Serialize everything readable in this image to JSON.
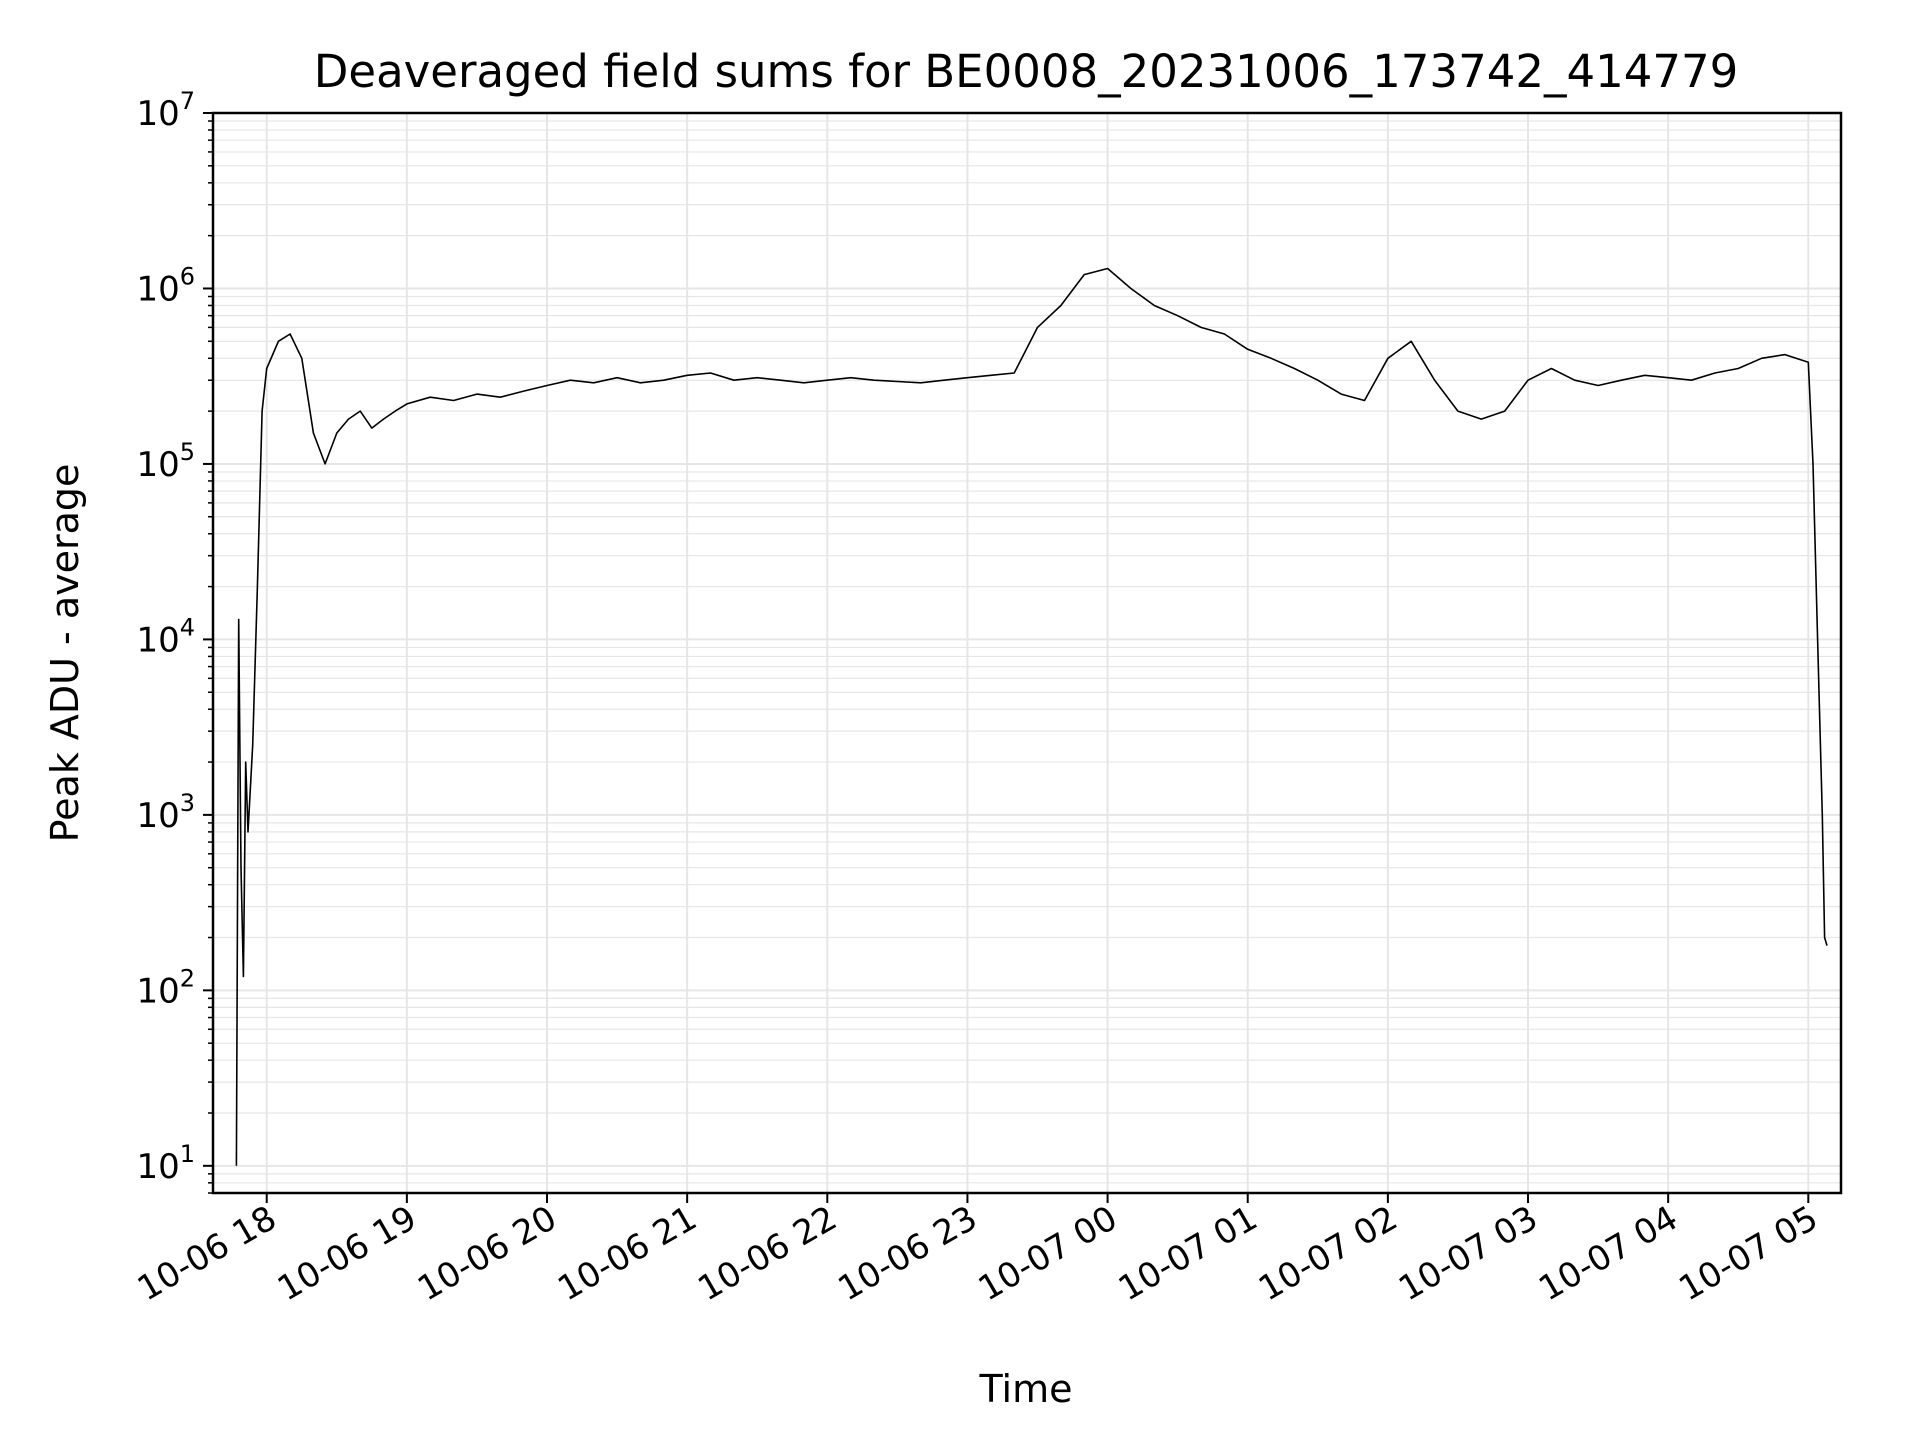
{
  "chart_data": {
    "type": "line",
    "title": "Deaveraged field sums for BE0008_20231006_173742_414779",
    "xlabel": "Time",
    "ylabel": "Peak ADU - average",
    "yscale": "log",
    "ylim": [
      7,
      10000000
    ],
    "xlim": [
      "2023-10-06 17:37",
      "2023-10-07 05:14"
    ],
    "grid": true,
    "line_color": "#000000",
    "grid_color": "#e6e6e6",
    "y_ticks": [
      {
        "value": 10,
        "base": "10",
        "exp": "1"
      },
      {
        "value": 100,
        "base": "10",
        "exp": "2"
      },
      {
        "value": 1000,
        "base": "10",
        "exp": "3"
      },
      {
        "value": 10000,
        "base": "10",
        "exp": "4"
      },
      {
        "value": 100000,
        "base": "10",
        "exp": "5"
      },
      {
        "value": 1000000,
        "base": "10",
        "exp": "6"
      },
      {
        "value": 10000000,
        "base": "10",
        "exp": "7"
      }
    ],
    "x_ticks": [
      {
        "value": "2023-10-06 18:00",
        "label": "10-06 18"
      },
      {
        "value": "2023-10-06 19:00",
        "label": "10-06 19"
      },
      {
        "value": "2023-10-06 20:00",
        "label": "10-06 20"
      },
      {
        "value": "2023-10-06 21:00",
        "label": "10-06 21"
      },
      {
        "value": "2023-10-06 22:00",
        "label": "10-06 22"
      },
      {
        "value": "2023-10-06 23:00",
        "label": "10-06 23"
      },
      {
        "value": "2023-10-07 00:00",
        "label": "10-07 00"
      },
      {
        "value": "2023-10-07 01:00",
        "label": "10-07 01"
      },
      {
        "value": "2023-10-07 02:00",
        "label": "10-07 02"
      },
      {
        "value": "2023-10-07 03:00",
        "label": "10-07 03"
      },
      {
        "value": "2023-10-07 04:00",
        "label": "10-07 04"
      },
      {
        "value": "2023-10-07 05:00",
        "label": "10-07 05"
      }
    ],
    "series": [
      {
        "x": [
          "2023-10-06 17:47",
          "2023-10-06 17:48",
          "2023-10-06 17:49",
          "2023-10-06 17:50",
          "2023-10-06 17:51",
          "2023-10-06 17:52",
          "2023-10-06 17:54",
          "2023-10-06 17:56",
          "2023-10-06 17:58",
          "2023-10-06 18:00",
          "2023-10-06 18:05",
          "2023-10-06 18:10",
          "2023-10-06 18:15",
          "2023-10-06 18:20",
          "2023-10-06 18:25",
          "2023-10-06 18:30",
          "2023-10-06 18:35",
          "2023-10-06 18:40",
          "2023-10-06 18:45",
          "2023-10-06 18:50",
          "2023-10-06 18:55",
          "2023-10-06 19:00",
          "2023-10-06 19:10",
          "2023-10-06 19:20",
          "2023-10-06 19:30",
          "2023-10-06 19:40",
          "2023-10-06 19:50",
          "2023-10-06 20:00",
          "2023-10-06 20:10",
          "2023-10-06 20:20",
          "2023-10-06 20:30",
          "2023-10-06 20:40",
          "2023-10-06 20:50",
          "2023-10-06 21:00",
          "2023-10-06 21:10",
          "2023-10-06 21:20",
          "2023-10-06 21:30",
          "2023-10-06 21:40",
          "2023-10-06 21:50",
          "2023-10-06 22:00",
          "2023-10-06 22:10",
          "2023-10-06 22:20",
          "2023-10-06 22:30",
          "2023-10-06 22:40",
          "2023-10-06 22:50",
          "2023-10-06 23:00",
          "2023-10-06 23:10",
          "2023-10-06 23:20",
          "2023-10-06 23:30",
          "2023-10-06 23:40",
          "2023-10-06 23:50",
          "2023-10-07 00:00",
          "2023-10-07 00:10",
          "2023-10-07 00:20",
          "2023-10-07 00:30",
          "2023-10-07 00:40",
          "2023-10-07 00:50",
          "2023-10-07 01:00",
          "2023-10-07 01:10",
          "2023-10-07 01:20",
          "2023-10-07 01:30",
          "2023-10-07 01:40",
          "2023-10-07 01:50",
          "2023-10-07 02:00",
          "2023-10-07 02:10",
          "2023-10-07 02:20",
          "2023-10-07 02:30",
          "2023-10-07 02:40",
          "2023-10-07 02:50",
          "2023-10-07 03:00",
          "2023-10-07 03:10",
          "2023-10-07 03:20",
          "2023-10-07 03:30",
          "2023-10-07 03:40",
          "2023-10-07 03:50",
          "2023-10-07 04:00",
          "2023-10-07 04:10",
          "2023-10-07 04:20",
          "2023-10-07 04:30",
          "2023-10-07 04:40",
          "2023-10-07 04:50",
          "2023-10-07 05:00",
          "2023-10-07 05:02",
          "2023-10-07 05:04",
          "2023-10-07 05:06",
          "2023-10-07 05:07",
          "2023-10-07 05:08"
        ],
        "y": [
          10,
          13000,
          500,
          120,
          2000,
          800,
          2500,
          20000,
          200000,
          350000,
          500000,
          550000,
          400000,
          150000,
          100000,
          150000,
          180000,
          200000,
          160000,
          180000,
          200000,
          220000,
          240000,
          230000,
          250000,
          240000,
          260000,
          280000,
          300000,
          290000,
          310000,
          290000,
          300000,
          320000,
          330000,
          300000,
          310000,
          300000,
          290000,
          300000,
          310000,
          300000,
          295000,
          290000,
          300000,
          310000,
          320000,
          330000,
          600000,
          800000,
          1200000,
          1300000,
          1000000,
          800000,
          700000,
          600000,
          550000,
          450000,
          400000,
          350000,
          300000,
          250000,
          230000,
          400000,
          500000,
          300000,
          200000,
          180000,
          200000,
          300000,
          350000,
          300000,
          280000,
          300000,
          320000,
          310000,
          300000,
          330000,
          350000,
          400000,
          420000,
          380000,
          100000,
          10000,
          1000,
          200,
          180
        ]
      }
    ]
  }
}
